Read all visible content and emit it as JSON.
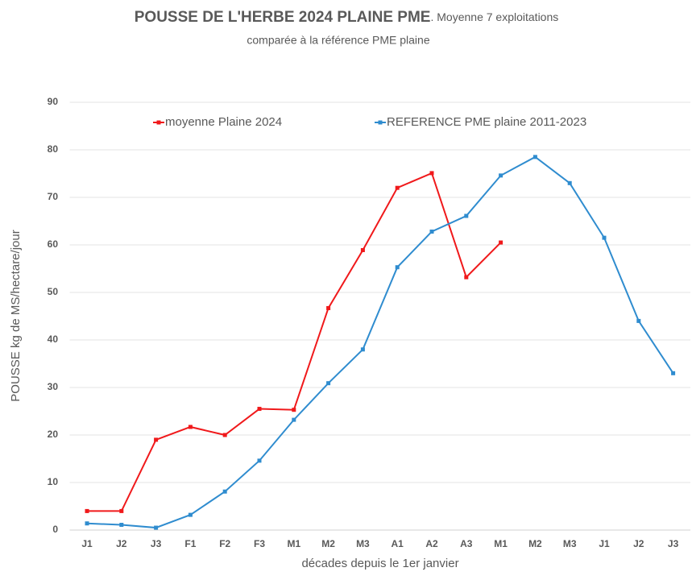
{
  "chart_data": {
    "type": "line",
    "title": "POUSSE DE L'HERBE 2024 PLAINE PME",
    "subtitle": [
      ". Moyenne 7 exploitations",
      "comparée à la référence PME plaine"
    ],
    "xlabel": "décades depuis le 1er janvier",
    "ylabel": "POUSSE kg de MS/hectare/jour",
    "categories": [
      "J1",
      "J2",
      "J3",
      "F1",
      "F2",
      "F3",
      "M1",
      "M2",
      "M3",
      "A1",
      "A2",
      "A3",
      "M1",
      "M2",
      "M3",
      "J1",
      "J2",
      "J3"
    ],
    "series": [
      {
        "name": "moyenne Plaine 2024",
        "color": "#f0191b",
        "values": [
          4,
          4,
          19,
          21.7,
          20,
          25.5,
          25.3,
          46.7,
          58.9,
          72,
          75.1,
          53.2,
          60.5,
          null,
          null,
          null,
          null,
          null
        ]
      },
      {
        "name": "REFERENCE PME plaine 2011-2023",
        "color": "#2f8ccf",
        "values": [
          1.4,
          1.1,
          0.5,
          3.2,
          8.1,
          14.6,
          23.2,
          30.9,
          38,
          55.3,
          62.8,
          66.1,
          74.6,
          78.5,
          73,
          61.5,
          44,
          33
        ]
      }
    ],
    "ylim": [
      0,
      90
    ],
    "yticks": [
      0,
      10,
      20,
      30,
      40,
      50,
      60,
      70,
      80,
      90
    ],
    "grid": true,
    "legend": "top"
  }
}
